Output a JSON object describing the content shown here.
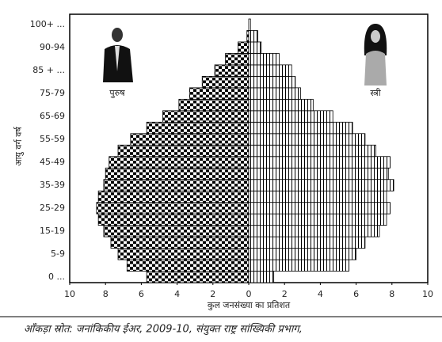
{
  "chart_data": {
    "type": "pyramid",
    "x_label": "कुल जनसंख्या का प्रतिशत",
    "y_label": "आयु वर्ग वर्ष",
    "source": "आँकड़ा स्रोत: जनांकिकीय ईअर, 2009-10, संयुक्त राष्ट्र सांख्यिकी प्रभाग,",
    "categories": [
      "0 ...",
      null,
      "5-9",
      null,
      "15-19",
      null,
      "25-29",
      null,
      "35-39",
      null,
      "45-49",
      null,
      "55-59",
      null,
      "65-69",
      null,
      "75-79",
      null,
      "85 + ...",
      null,
      "90-94",
      null,
      "100+ ..."
    ],
    "series": [
      {
        "name": "पुरुष",
        "color": "#000000",
        "side": "left",
        "values": [
          5.7,
          6.8,
          7.3,
          7.7,
          8.1,
          8.4,
          8.5,
          8.4,
          8.1,
          8.0,
          7.8,
          7.3,
          6.6,
          5.7,
          4.8,
          3.9,
          3.3,
          2.6,
          1.9,
          1.3,
          0.6,
          0.1,
          0
        ]
      },
      {
        "name": "स्त्री",
        "color": "#000000",
        "side": "right",
        "values": [
          1.4,
          5.6,
          6.0,
          6.5,
          7.3,
          7.7,
          7.9,
          7.7,
          8.1,
          7.8,
          7.9,
          7.1,
          6.5,
          5.8,
          4.7,
          3.6,
          2.9,
          2.6,
          2.4,
          1.7,
          0.7,
          0.5,
          0.1
        ]
      }
    ],
    "xlim": [
      -10,
      10
    ],
    "xticks": [
      {
        "value": -10,
        "label": "10"
      },
      {
        "value": -8,
        "label": "8"
      },
      {
        "value": -6,
        "label": "6"
      },
      {
        "value": -4,
        "label": "4"
      },
      {
        "value": -2,
        "label": "2"
      },
      0,
      2,
      4,
      6,
      8,
      10
    ]
  }
}
